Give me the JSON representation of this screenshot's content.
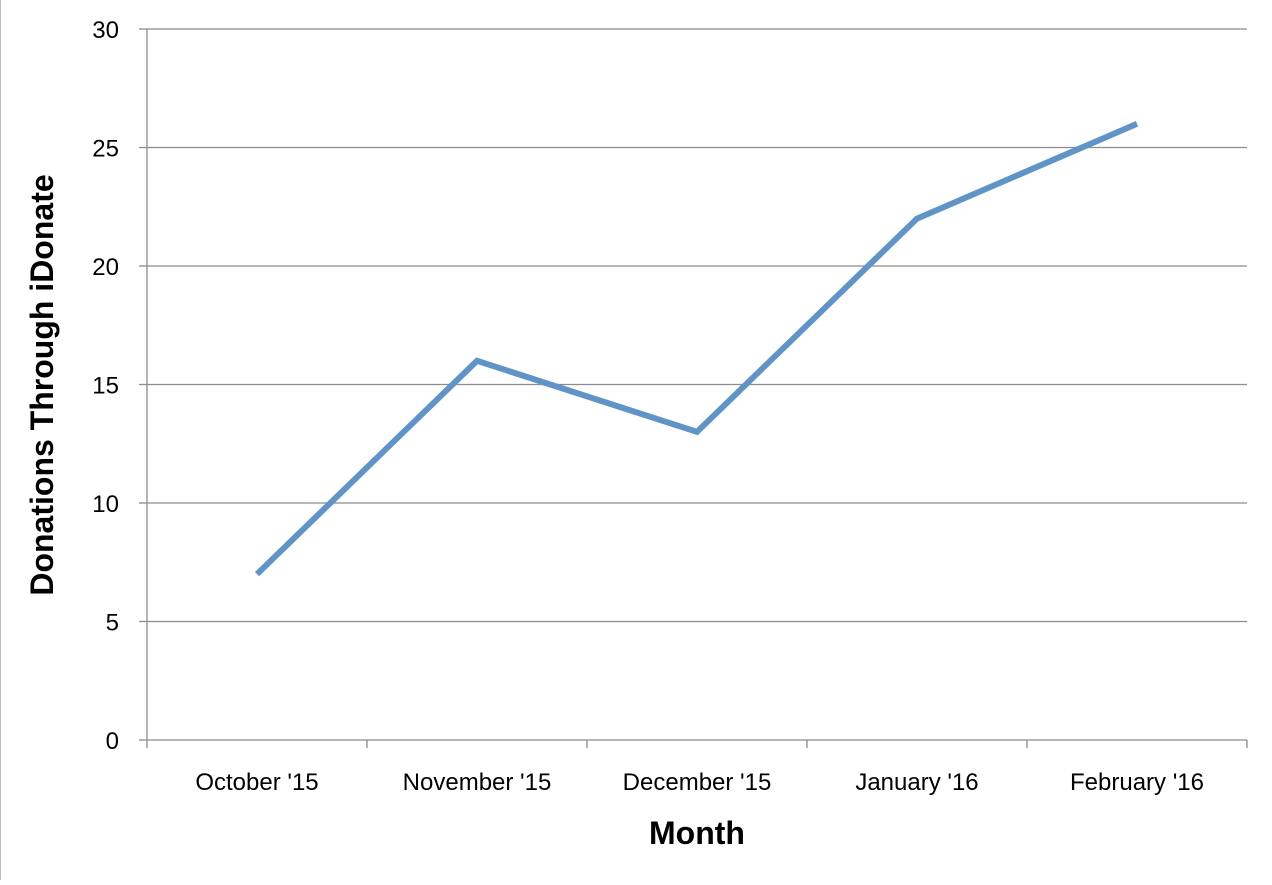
{
  "chart_data": {
    "type": "line",
    "title": "",
    "xlabel": "Month",
    "ylabel": "Donations Through iDonate",
    "categories": [
      "October '15",
      "November '15",
      "December '15",
      "January '16",
      "February '16"
    ],
    "series": [
      {
        "values": [
          7,
          16,
          13,
          22,
          26
        ],
        "color": "#6194c6"
      }
    ],
    "ylim": [
      0,
      30
    ],
    "yticks": [
      0,
      5,
      10,
      15,
      20,
      25,
      30
    ],
    "grid": true,
    "legend": "none"
  }
}
